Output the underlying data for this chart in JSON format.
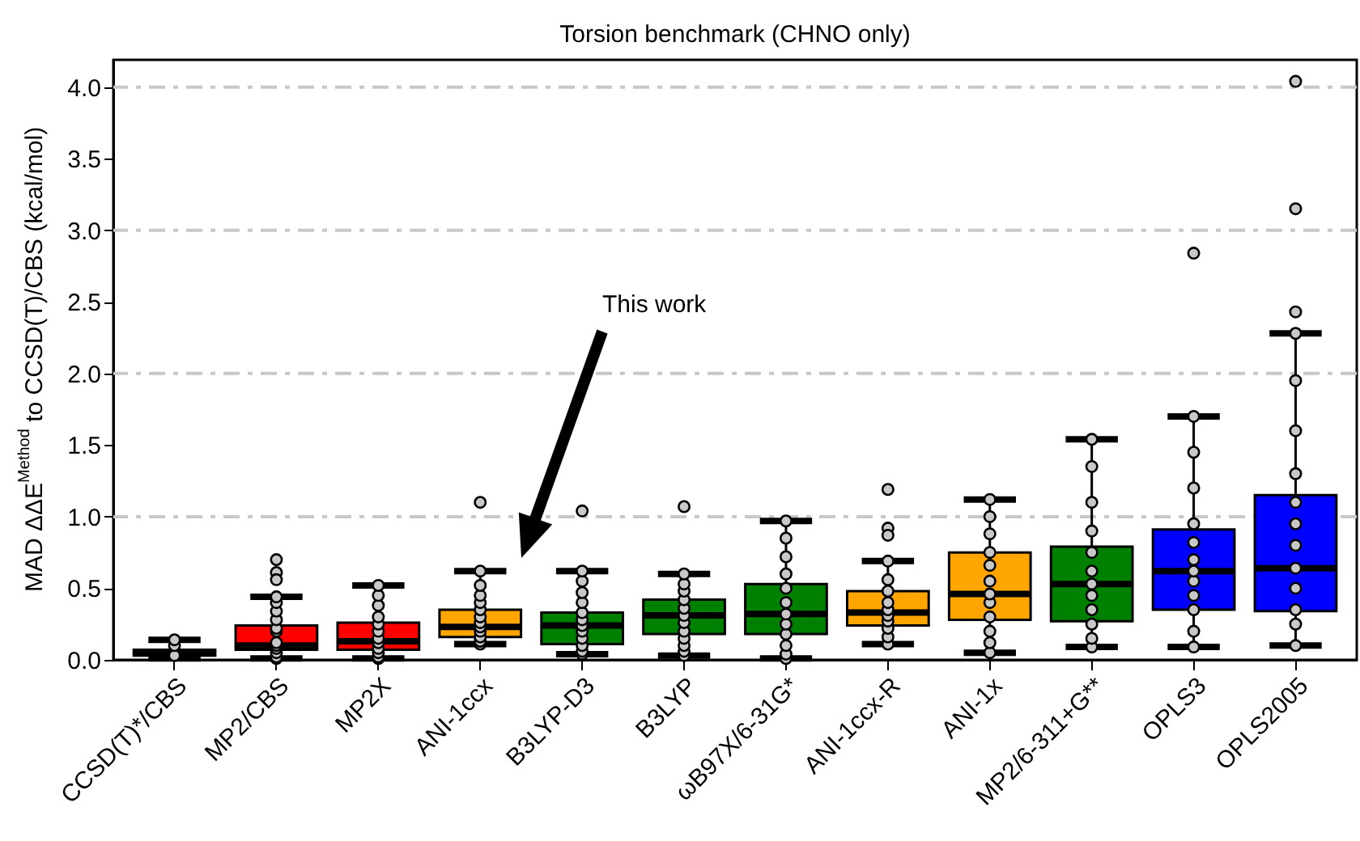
{
  "chart_data": {
    "type": "box",
    "title": "Torsion benchmark (CHNO only)",
    "ylabel": "MAD ΔΔE$^{Method}$ to CCSD(T)/CBS (kcal/mol)",
    "categories": [
      "CCSD(T)*/CBS",
      "MP2/CBS",
      "MP2X",
      "ANI-1ccx",
      "B3LYP-D3",
      "B3LYP",
      "ωB97X/6-31G*",
      "ANI-1ccx-R",
      "ANI-1x",
      "MP2/6-311+G**",
      "OPLS3",
      "OPLS2005"
    ],
    "colors": [
      "#000000",
      "#ff0000",
      "#ff0000",
      "#ffa500",
      "#008000",
      "#008000",
      "#008000",
      "#ffa500",
      "#ffa500",
      "#008000",
      "#0000ff",
      "#0000ff"
    ],
    "boxes": [
      {
        "low": 0.01,
        "q1": 0.03,
        "median": 0.05,
        "q3": 0.07,
        "high": 0.14
      },
      {
        "low": 0.01,
        "q1": 0.07,
        "median": 0.1,
        "q3": 0.24,
        "high": 0.44,
        "outliers": [
          0.7,
          0.61,
          0.56
        ]
      },
      {
        "low": 0.01,
        "q1": 0.07,
        "median": 0.13,
        "q3": 0.26,
        "high": 0.52
      },
      {
        "low": 0.11,
        "q1": 0.16,
        "median": 0.23,
        "q3": 0.35,
        "high": 0.62,
        "outliers": [
          1.1
        ]
      },
      {
        "low": 0.04,
        "q1": 0.11,
        "median": 0.24,
        "q3": 0.33,
        "high": 0.62,
        "outliers": [
          1.04
        ]
      },
      {
        "low": 0.03,
        "q1": 0.18,
        "median": 0.31,
        "q3": 0.42,
        "high": 0.6,
        "outliers": [
          1.07
        ]
      },
      {
        "low": 0.01,
        "q1": 0.18,
        "median": 0.32,
        "q3": 0.53,
        "high": 0.97
      },
      {
        "low": 0.11,
        "q1": 0.24,
        "median": 0.33,
        "q3": 0.48,
        "high": 0.69,
        "outliers": [
          1.19,
          0.92,
          0.87
        ]
      },
      {
        "low": 0.05,
        "q1": 0.28,
        "median": 0.46,
        "q3": 0.75,
        "high": 1.12
      },
      {
        "low": 0.09,
        "q1": 0.27,
        "median": 0.53,
        "q3": 0.79,
        "high": 1.54
      },
      {
        "low": 0.09,
        "q1": 0.35,
        "median": 0.62,
        "q3": 0.91,
        "high": 1.7,
        "outliers": [
          2.84
        ]
      },
      {
        "low": 0.1,
        "q1": 0.34,
        "median": 0.64,
        "q3": 1.15,
        "high": 2.28,
        "outliers": [
          4.04,
          3.15,
          2.43
        ]
      }
    ],
    "series": [
      {
        "type": "scatter",
        "color": "#c8c8c8",
        "x": [
          "CCSD(T)*/CBS",
          "CCSD(T)*/CBS",
          "CCSD(T)*/CBS",
          "MP2/CBS",
          "MP2/CBS",
          "MP2/CBS",
          "MP2/CBS",
          "MP2/CBS",
          "MP2/CBS",
          "MP2/CBS",
          "MP2/CBS",
          "MP2/CBS",
          "MP2/CBS",
          "MP2/CBS",
          "MP2/CBS",
          "MP2X",
          "MP2X",
          "MP2X",
          "MP2X",
          "MP2X",
          "MP2X",
          "MP2X",
          "MP2X",
          "MP2X",
          "MP2X",
          "MP2X",
          "MP2X",
          "ANI-1ccx",
          "ANI-1ccx",
          "ANI-1ccx",
          "ANI-1ccx",
          "ANI-1ccx",
          "ANI-1ccx",
          "ANI-1ccx",
          "ANI-1ccx",
          "ANI-1ccx",
          "ANI-1ccx",
          "ANI-1ccx",
          "ANI-1ccx",
          "B3LYP-D3",
          "B3LYP-D3",
          "B3LYP-D3",
          "B3LYP-D3",
          "B3LYP-D3",
          "B3LYP-D3",
          "B3LYP-D3",
          "B3LYP-D3",
          "B3LYP-D3",
          "B3LYP-D3",
          "B3LYP-D3",
          "B3LYP-D3",
          "B3LYP",
          "B3LYP",
          "B3LYP",
          "B3LYP",
          "B3LYP",
          "B3LYP",
          "B3LYP",
          "B3LYP",
          "B3LYP",
          "B3LYP",
          "B3LYP",
          "B3LYP",
          "ωB97X/6-31G*",
          "ωB97X/6-31G*",
          "ωB97X/6-31G*",
          "ωB97X/6-31G*",
          "ωB97X/6-31G*",
          "ωB97X/6-31G*",
          "ωB97X/6-31G*",
          "ωB97X/6-31G*",
          "ωB97X/6-31G*",
          "ωB97X/6-31G*",
          "ωB97X/6-31G*",
          "ωB97X/6-31G*",
          "ANI-1ccx-R",
          "ANI-1ccx-R",
          "ANI-1ccx-R",
          "ANI-1ccx-R",
          "ANI-1ccx-R",
          "ANI-1ccx-R",
          "ANI-1ccx-R",
          "ANI-1ccx-R",
          "ANI-1ccx-R",
          "ANI-1ccx-R",
          "ANI-1x",
          "ANI-1x",
          "ANI-1x",
          "ANI-1x",
          "ANI-1x",
          "ANI-1x",
          "ANI-1x",
          "ANI-1x",
          "ANI-1x",
          "ANI-1x",
          "ANI-1x",
          "ANI-1x",
          "MP2/6-311+G**",
          "MP2/6-311+G**",
          "MP2/6-311+G**",
          "MP2/6-311+G**",
          "MP2/6-311+G**",
          "MP2/6-311+G**",
          "MP2/6-311+G**",
          "MP2/6-311+G**",
          "MP2/6-311+G**",
          "MP2/6-311+G**",
          "MP2/6-311+G**",
          "MP2/6-311+G**",
          "OPLS3",
          "OPLS3",
          "OPLS3",
          "OPLS3",
          "OPLS3",
          "OPLS3",
          "OPLS3",
          "OPLS3",
          "OPLS3",
          "OPLS3",
          "OPLS3",
          "OPLS3",
          "OPLS2005",
          "OPLS2005",
          "OPLS2005",
          "OPLS2005",
          "OPLS2005",
          "OPLS2005",
          "OPLS2005",
          "OPLS2005",
          "OPLS2005",
          "OPLS2005",
          "OPLS2005",
          "OPLS2005"
        ],
        "values": [
          0.03,
          0.1,
          0.14,
          0.01,
          0.02,
          0.05,
          0.08,
          0.1,
          0.12,
          0.2,
          0.22,
          0.28,
          0.34,
          0.4,
          0.44,
          0.01,
          0.02,
          0.05,
          0.08,
          0.12,
          0.15,
          0.2,
          0.25,
          0.3,
          0.38,
          0.45,
          0.52,
          0.11,
          0.13,
          0.16,
          0.2,
          0.23,
          0.26,
          0.3,
          0.35,
          0.4,
          0.45,
          0.52,
          0.62,
          0.04,
          0.06,
          0.1,
          0.15,
          0.2,
          0.24,
          0.28,
          0.33,
          0.4,
          0.47,
          0.55,
          0.62,
          0.03,
          0.06,
          0.1,
          0.15,
          0.2,
          0.26,
          0.31,
          0.36,
          0.42,
          0.48,
          0.53,
          0.6,
          0.01,
          0.04,
          0.1,
          0.18,
          0.25,
          0.32,
          0.4,
          0.5,
          0.6,
          0.72,
          0.85,
          0.97,
          0.11,
          0.16,
          0.22,
          0.27,
          0.31,
          0.35,
          0.4,
          0.48,
          0.56,
          0.69,
          0.05,
          0.12,
          0.2,
          0.3,
          0.4,
          0.46,
          0.55,
          0.66,
          0.75,
          0.88,
          1.0,
          1.12,
          0.09,
          0.15,
          0.25,
          0.35,
          0.45,
          0.53,
          0.62,
          0.75,
          0.9,
          1.1,
          1.35,
          1.54,
          0.09,
          0.2,
          0.35,
          0.45,
          0.55,
          0.62,
          0.7,
          0.82,
          0.95,
          1.2,
          1.45,
          1.7,
          0.1,
          0.25,
          0.35,
          0.5,
          0.64,
          0.8,
          0.95,
          1.1,
          1.3,
          1.6,
          1.95,
          2.28
        ]
      }
    ],
    "ylim": [
      0,
      4.19
    ],
    "yticks": [
      {
        "value": 0,
        "label": "0.0"
      },
      0.5,
      {
        "value": 1,
        "label": "1.0"
      },
      1.5,
      {
        "value": 2,
        "label": "2.0"
      },
      2.5,
      {
        "value": 3,
        "label": "3.0"
      },
      3.5,
      {
        "value": 4,
        "label": "4.0"
      }
    ],
    "grid": "y",
    "annotations": [
      "This work"
    ]
  }
}
